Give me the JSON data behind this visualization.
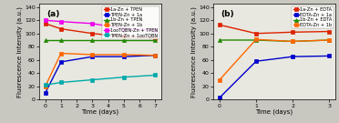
{
  "panel_a": {
    "series": [
      {
        "label": "1a-Zn + TPEN",
        "color": "#dd2200",
        "marker": "s",
        "x": [
          0,
          1,
          3,
          5,
          7
        ],
        "y": [
          115,
          107,
          100,
          95,
          93
        ]
      },
      {
        "label": "TPEN-Zn + 1a",
        "color": "#0000cc",
        "marker": "s",
        "x": [
          0,
          1,
          3,
          5,
          7
        ],
        "y": [
          10,
          57,
          65,
          65,
          67
        ]
      },
      {
        "label": "1b-Zn + TPEN",
        "color": "#228800",
        "marker": "^",
        "x": [
          0,
          1,
          3,
          5,
          7
        ],
        "y": [
          90,
          90,
          90,
          90,
          90
        ]
      },
      {
        "label": "TPEN-Zn + 1b",
        "color": "#ff6600",
        "marker": "s",
        "x": [
          0,
          1,
          3,
          5,
          7
        ],
        "y": [
          20,
          70,
          68,
          68,
          67
        ]
      },
      {
        "label": "1ooTQBN-Zn + TPEN",
        "color": "#ee00ee",
        "marker": "s",
        "x": [
          0,
          1,
          3,
          5,
          7
        ],
        "y": [
          120,
          118,
          115,
          107,
          105
        ]
      },
      {
        "label": "TPEN-Zn + 1ooTQBN",
        "color": "#00aaaa",
        "marker": "s",
        "x": [
          0,
          1,
          3,
          5,
          7
        ],
        "y": [
          22,
          26,
          30,
          34,
          37
        ]
      }
    ],
    "xlabel": "Time (days)",
    "ylabel": "Fluorescence Intensity (a.u.)",
    "xlim": [
      -0.4,
      7.4
    ],
    "ylim": [
      0,
      145
    ],
    "yticks": [
      0,
      20,
      40,
      60,
      80,
      100,
      120,
      140
    ],
    "xticks": [
      0,
      1,
      2,
      3,
      4,
      5,
      6,
      7
    ],
    "label": "(a)"
  },
  "panel_b": {
    "series": [
      {
        "label": "1a-Zn + EDTA",
        "color": "#dd2200",
        "marker": "s",
        "x": [
          0,
          1,
          2,
          3
        ],
        "y": [
          113,
          100,
          102,
          103
        ]
      },
      {
        "label": "EDTA-Zn + 1a",
        "color": "#0000cc",
        "marker": "s",
        "x": [
          0,
          1,
          2,
          3
        ],
        "y": [
          3,
          58,
          65,
          66
        ]
      },
      {
        "label": "1b-Zn + EDTA",
        "color": "#228800",
        "marker": "^",
        "x": [
          0,
          1,
          2,
          3
        ],
        "y": [
          90,
          90,
          88,
          90
        ]
      },
      {
        "label": "EDTA-Zn + 1b",
        "color": "#ff6600",
        "marker": "s",
        "x": [
          0,
          1,
          2,
          3
        ],
        "y": [
          30,
          91,
          88,
          90
        ]
      }
    ],
    "xlabel": "Time (days)",
    "ylabel": "Fluorescence Intensity (a.u.)",
    "xlim": [
      -0.18,
      3.18
    ],
    "ylim": [
      0,
      145
    ],
    "yticks": [
      0,
      20,
      40,
      60,
      80,
      100,
      120,
      140
    ],
    "xticks": [
      0,
      1,
      2,
      3
    ],
    "label": "(b)"
  },
  "linewidth": 1.0,
  "markersize": 3.0,
  "fontsize_label": 5.0,
  "fontsize_tick": 4.5,
  "fontsize_legend": 3.6,
  "fontsize_panel": 6.5,
  "bg_color": "#e8e8e0",
  "fig_bg": "#c8c8c0"
}
